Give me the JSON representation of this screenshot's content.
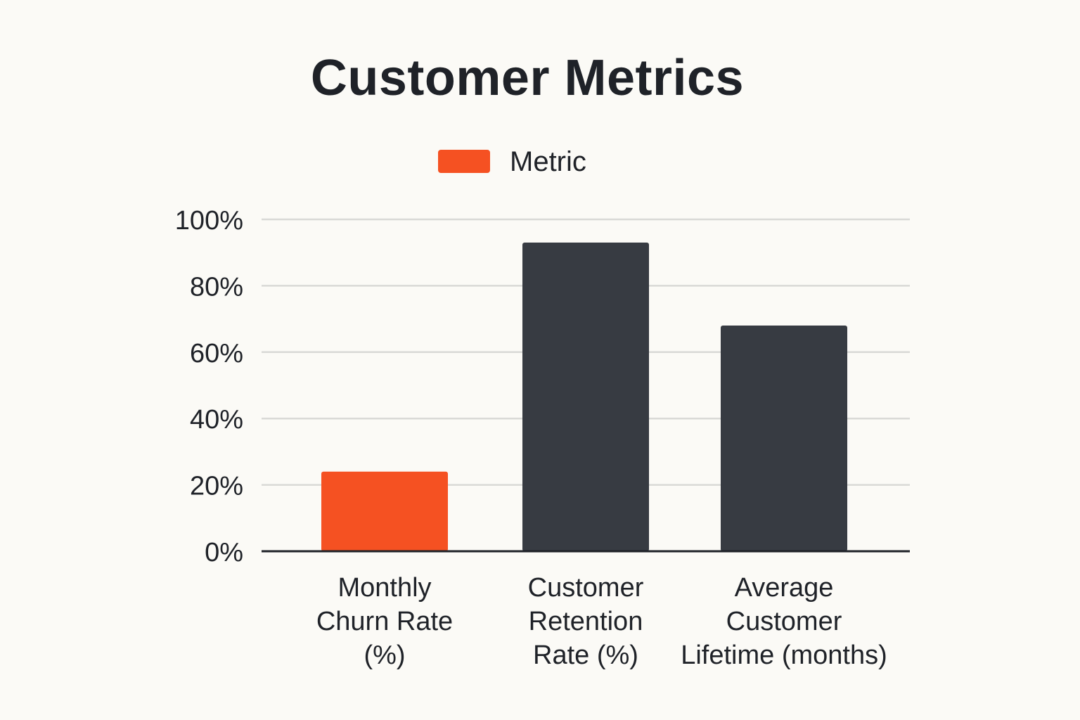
{
  "chart_data": {
    "type": "bar",
    "title": "Customer Metrics",
    "legend": {
      "position": "top",
      "entries": [
        {
          "label": "Metric",
          "color": "#f55122"
        }
      ]
    },
    "categories": [
      [
        "Monthly",
        "Churn Rate",
        "(%)"
      ],
      [
        "Customer",
        "Retention",
        "Rate (%)"
      ],
      [
        "Average",
        "Customer",
        "Lifetime (months)"
      ]
    ],
    "values": [
      24,
      93,
      68
    ],
    "bar_colors": [
      "#f55122",
      "#373b42",
      "#373b42"
    ],
    "ylim": [
      0,
      100
    ],
    "yticks": [
      0,
      20,
      40,
      60,
      80,
      100
    ],
    "ytick_labels": [
      "0%",
      "20%",
      "40%",
      "60%",
      "80%",
      "100%"
    ],
    "xlabel": "",
    "ylabel": "",
    "grid": true
  }
}
